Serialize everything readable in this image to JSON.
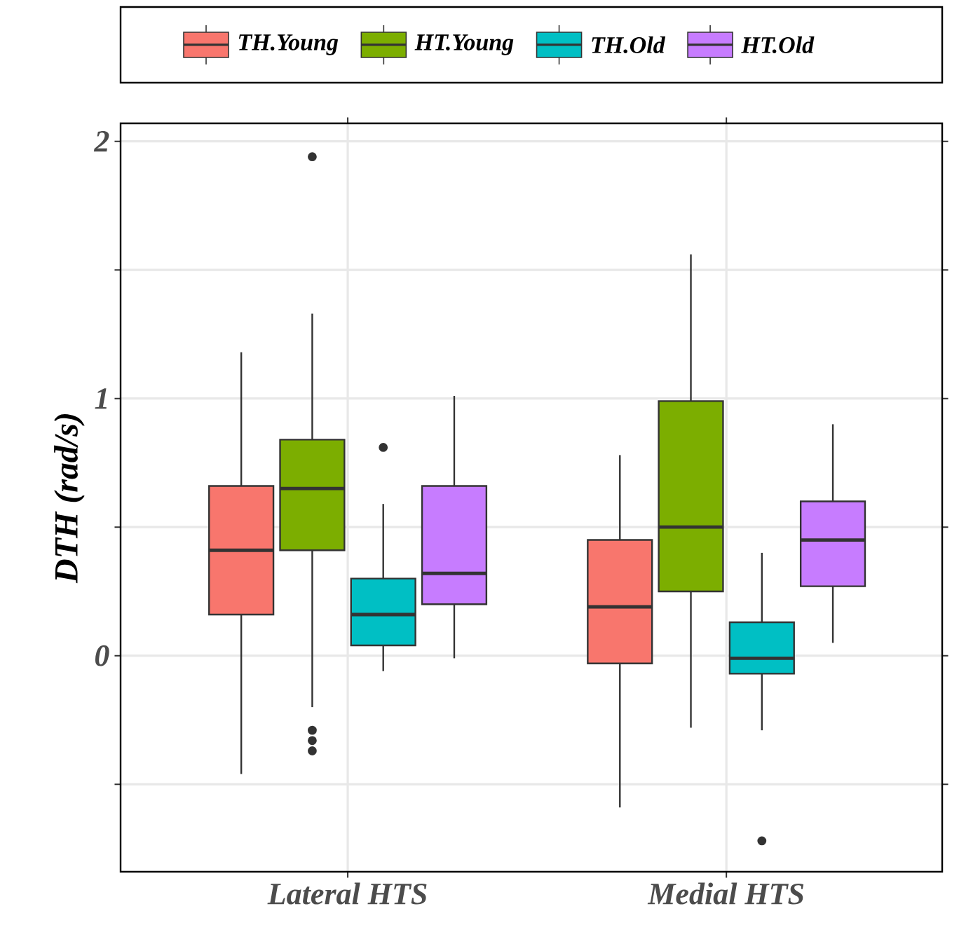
{
  "chart_data": {
    "type": "box",
    "ylabel": "DTH (rad/s)",
    "categories": [
      "Lateral HTS",
      "Medial HTS"
    ],
    "series": [
      {
        "name": "TH.Young",
        "color": "#f8766d",
        "boxes": [
          {
            "low": -0.46,
            "q1": 0.16,
            "median": 0.41,
            "q3": 0.66,
            "high": 1.18
          },
          {
            "low": -0.59,
            "q1": -0.03,
            "median": 0.19,
            "q3": 0.45,
            "high": 0.78
          }
        ]
      },
      {
        "name": "HT.Young",
        "color": "#7cae00",
        "boxes": [
          {
            "low": -0.2,
            "q1": 0.41,
            "median": 0.65,
            "q3": 0.84,
            "high": 1.33,
            "outliers": [
              1.94,
              -0.29,
              -0.33,
              -0.37
            ]
          },
          {
            "low": -0.28,
            "q1": 0.25,
            "median": 0.5,
            "q3": 0.99,
            "high": 1.56
          }
        ]
      },
      {
        "name": "TH.Old",
        "color": "#00bfc4",
        "boxes": [
          {
            "low": -0.06,
            "q1": 0.04,
            "median": 0.16,
            "q3": 0.3,
            "high": 0.59,
            "outliers": [
              0.81
            ]
          },
          {
            "low": -0.29,
            "q1": -0.07,
            "median": -0.01,
            "q3": 0.13,
            "high": 0.4,
            "outliers": [
              -0.72
            ]
          }
        ]
      },
      {
        "name": "HT.Old",
        "color": "#c77cff",
        "boxes": [
          {
            "low": -0.01,
            "q1": 0.2,
            "median": 0.32,
            "q3": 0.66,
            "high": 1.01
          },
          {
            "low": 0.05,
            "q1": 0.27,
            "median": 0.45,
            "q3": 0.6,
            "high": 0.9
          }
        ]
      }
    ],
    "ylim": [
      -0.84,
      2.07
    ],
    "yticks": [
      {
        "value": -0.5,
        "label": null
      },
      0,
      {
        "value": 0.5,
        "label": null
      },
      1,
      {
        "value": 1.5,
        "label": null
      },
      2
    ],
    "grid": true,
    "legend": "top"
  }
}
